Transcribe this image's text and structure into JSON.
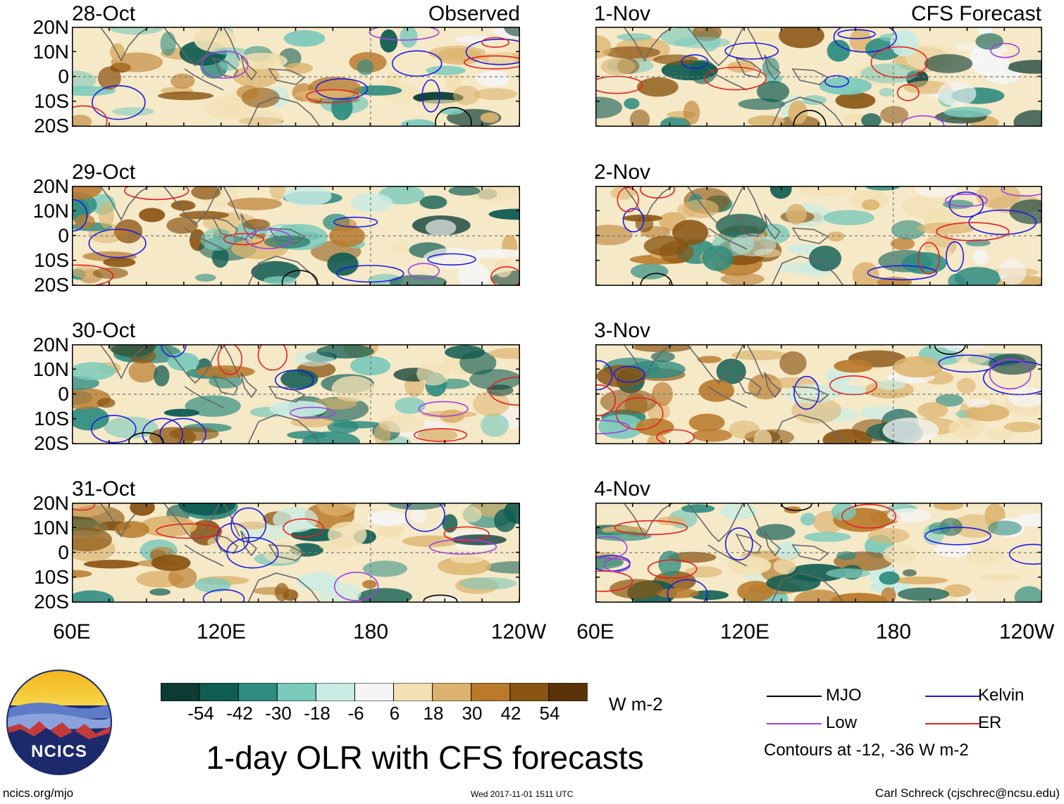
{
  "title": "1-day OLR with CFS forecasts",
  "observed_label": "Observed",
  "forecast_label": "CFS Forecast",
  "latitude_labels": [
    "20N",
    "10N",
    "0",
    "10S",
    "20S"
  ],
  "longitude_labels": [
    "60E",
    "120E",
    "180",
    "120W"
  ],
  "observed_panels": [
    {
      "date": "28-Oct"
    },
    {
      "date": "29-Oct"
    },
    {
      "date": "30-Oct"
    },
    {
      "date": "31-Oct"
    }
  ],
  "forecast_panels": [
    {
      "date": "1-Nov"
    },
    {
      "date": "2-Nov"
    },
    {
      "date": "3-Nov"
    },
    {
      "date": "4-Nov"
    }
  ],
  "colorbar": {
    "units": "W m-2",
    "tick_labels": [
      "-54",
      "-42",
      "-30",
      "-18",
      "-6",
      "6",
      "18",
      "30",
      "42",
      "54"
    ],
    "colors": [
      "#0b3b33",
      "#0f5c52",
      "#2e8c80",
      "#7ac9bb",
      "#c9ece4",
      "#f5f5f5",
      "#f3e1b4",
      "#dcb36e",
      "#b97a2c",
      "#8a5412",
      "#5a3408"
    ]
  },
  "legend": {
    "items": [
      {
        "label": "MJO",
        "color": "#000000"
      },
      {
        "label": "Kelvin",
        "color": "#1a1ae6"
      },
      {
        "label": "Low",
        "color": "#a040e0"
      },
      {
        "label": "ER",
        "color": "#e62020"
      }
    ],
    "contours_note": "Contours at -12, -36 W m-2"
  },
  "logo": {
    "text": "NCICS"
  },
  "footer": {
    "website": "ncics.org/mjo",
    "timestamp": "Wed 2017-11-01 1511 UTC",
    "author": "Carl Schreck (cjschrec@ncsu.edu)"
  }
}
